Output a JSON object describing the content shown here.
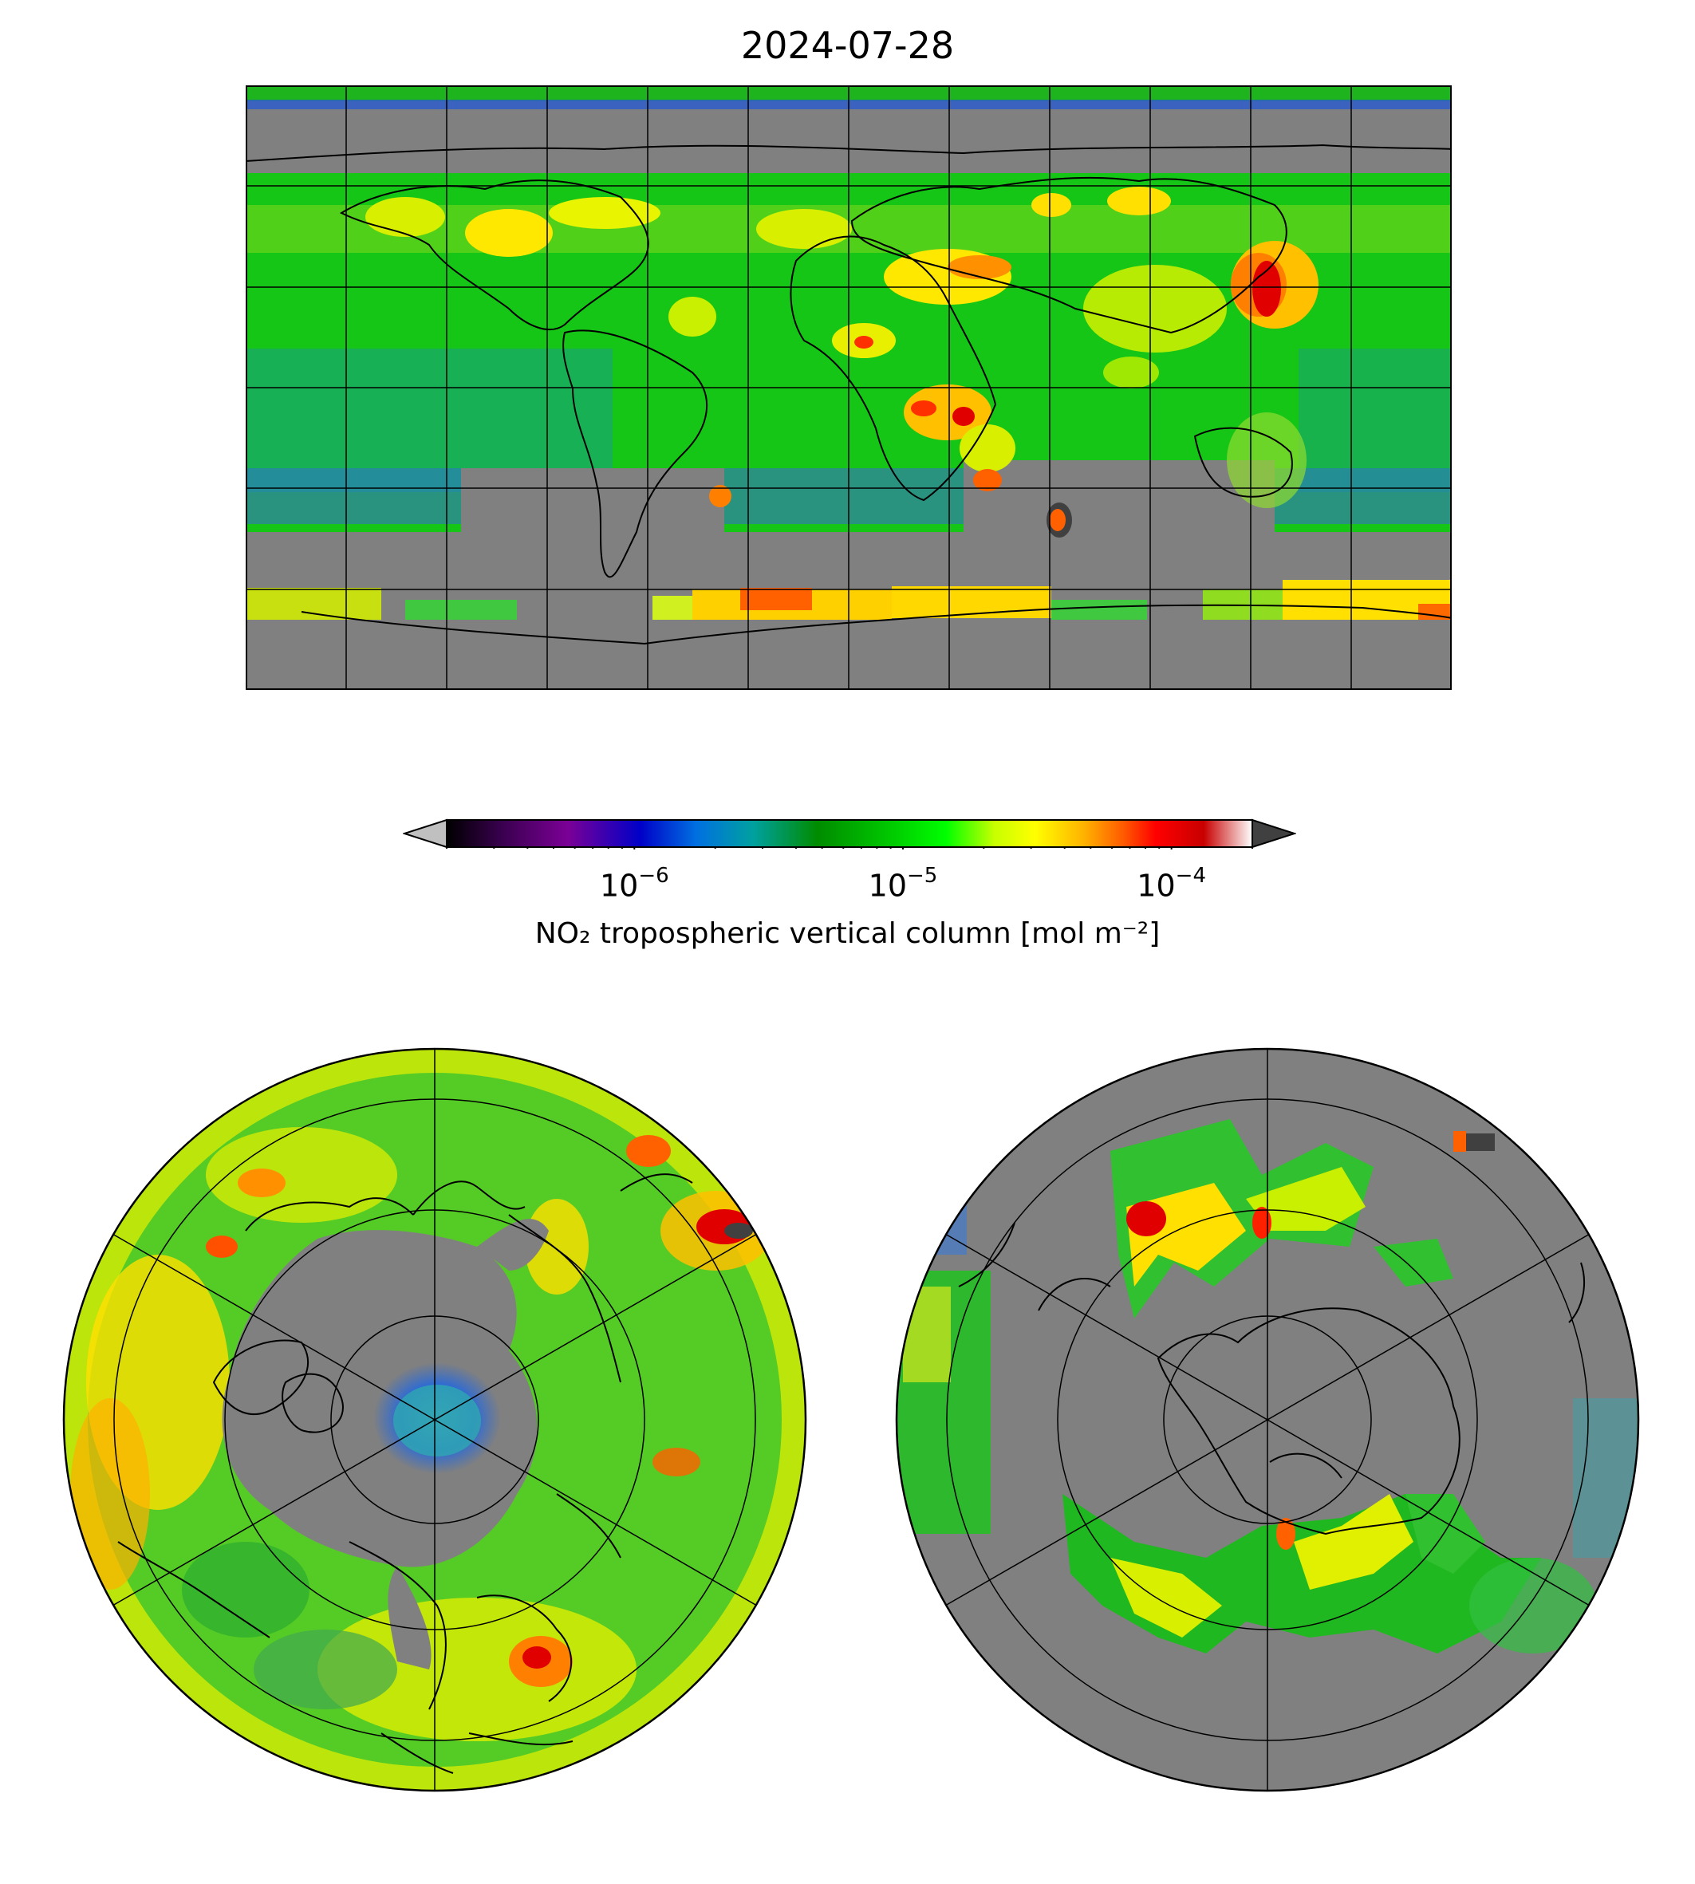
{
  "title": "2024-07-28",
  "colors": {
    "no_data": "#808080",
    "land_line": "#000000",
    "frame": "#000000",
    "colormap": [
      "#000000",
      "#3a0050",
      "#7b0096",
      "#0000c8",
      "#0070e0",
      "#00a0a0",
      "#008c00",
      "#00c800",
      "#00ff00",
      "#c8ff00",
      "#ffff00",
      "#ffb400",
      "#ff5a00",
      "#ff0000",
      "#c80000",
      "#ffffff"
    ],
    "under": "#c0c0c0",
    "over": "#404040"
  },
  "colorbar": {
    "label": "NO₂ tropospheric vertical column [mol m⁻²]",
    "scale": "log",
    "range": [
      2e-07,
      0.0002
    ],
    "extend": "both",
    "ticks": [
      {
        "base": "10",
        "exp": "−6",
        "value": 1e-06
      },
      {
        "base": "10",
        "exp": "−5",
        "value": 1e-05
      },
      {
        "base": "10",
        "exp": "−4",
        "value": 0.0001
      }
    ]
  },
  "maps": [
    {
      "projection": "equirectangular",
      "extent_lon": [
        -180,
        180
      ],
      "extent_lat": [
        -90,
        90
      ],
      "gridlines": true
    },
    {
      "projection": "north-polar-orthographic",
      "gridlines": true
    },
    {
      "projection": "south-polar-orthographic",
      "gridlines": true
    }
  ]
}
